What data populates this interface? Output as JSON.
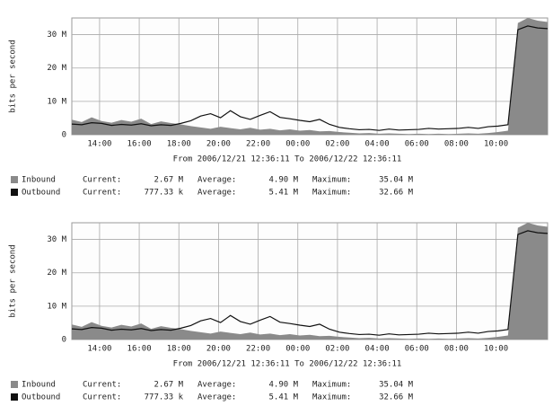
{
  "chart_data": [
    {
      "type": "area-line",
      "y_label": "bits per second",
      "subtitle": "From 2006/12/21 12:36:11 To 2006/12/22 12:36:11",
      "x": [
        12.6,
        13.1,
        13.6,
        14.1,
        14.6,
        15.1,
        15.6,
        16.1,
        16.6,
        17.1,
        17.6,
        18.1,
        18.6,
        19.1,
        19.6,
        20.1,
        20.6,
        21.1,
        21.6,
        22.1,
        22.6,
        23.1,
        23.6,
        24.1,
        24.6,
        25.1,
        25.6,
        26.1,
        26.6,
        27.1,
        27.6,
        28.1,
        28.6,
        29.1,
        29.6,
        30.1,
        30.6,
        31.1,
        31.6,
        32.1,
        32.6,
        33.1,
        33.6,
        34.1,
        34.6,
        35.1,
        35.6,
        36.1,
        36.6
      ],
      "xlim": [
        12.6,
        36.6
      ],
      "xticks": [
        {
          "value": 14,
          "label": "14:00"
        },
        {
          "value": 16,
          "label": "16:00"
        },
        {
          "value": 18,
          "label": "18:00"
        },
        {
          "value": 20,
          "label": "20:00"
        },
        {
          "value": 22,
          "label": "22:00"
        },
        {
          "value": 24,
          "label": "00:00"
        },
        {
          "value": 26,
          "label": "02:00"
        },
        {
          "value": 28,
          "label": "04:00"
        },
        {
          "value": 30,
          "label": "06:00"
        },
        {
          "value": 32,
          "label": "08:00"
        },
        {
          "value": 34,
          "label": "10:00"
        }
      ],
      "ylim": [
        0,
        35
      ],
      "yticks": [
        {
          "value": 0,
          "label": "0"
        },
        {
          "value": 10,
          "label": "10 M"
        },
        {
          "value": 20,
          "label": "20 M"
        },
        {
          "value": 30,
          "label": "30 M"
        }
      ],
      "grid": true,
      "series": [
        {
          "name": "Inbound",
          "color": "#8a8a8a",
          "style": "area",
          "values": [
            4.5,
            3.8,
            5.2,
            4.1,
            3.6,
            4.4,
            3.9,
            4.8,
            3.2,
            4.0,
            3.5,
            3.1,
            2.6,
            2.2,
            1.8,
            2.4,
            2.0,
            1.6,
            2.1,
            1.5,
            1.8,
            1.3,
            1.6,
            1.2,
            1.4,
            1.0,
            1.1,
            0.8,
            0.6,
            0.4,
            0.5,
            0.3,
            0.4,
            0.3,
            0.2,
            0.3,
            0.2,
            0.3,
            0.2,
            0.3,
            0.4,
            0.3,
            0.5,
            0.8,
            1.2,
            33.5,
            35.0,
            34.2,
            33.8
          ],
          "stats": [
            {
              "label": "Current:",
              "text": "2.67 M"
            },
            {
              "label": "Average:",
              "text": "4.90 M"
            },
            {
              "label": "Maximum:",
              "text": "35.04 M"
            }
          ]
        },
        {
          "name": "Outbound",
          "color": "#111111",
          "style": "line",
          "values": [
            3.2,
            3.0,
            3.6,
            3.4,
            2.8,
            3.1,
            2.9,
            3.3,
            2.7,
            3.0,
            2.8,
            3.4,
            4.2,
            5.6,
            6.3,
            5.1,
            7.2,
            5.4,
            4.6,
            5.8,
            6.9,
            5.2,
            4.8,
            4.3,
            3.9,
            4.6,
            3.1,
            2.2,
            1.8,
            1.5,
            1.6,
            1.3,
            1.7,
            1.4,
            1.5,
            1.6,
            1.9,
            1.7,
            1.8,
            1.9,
            2.2,
            1.9,
            2.4,
            2.6,
            3.0,
            31.5,
            32.6,
            32.0,
            31.8
          ],
          "stats": [
            {
              "label": "Current:",
              "text": "777.33 k"
            },
            {
              "label": "Average:",
              "text": "5.41 M"
            },
            {
              "label": "Maximum:",
              "text": "32.66 M"
            }
          ]
        }
      ]
    },
    {
      "type": "area-line",
      "y_label": "bits per second",
      "subtitle": "From 2006/12/21 12:36:11 To 2006/12/22 12:36:11",
      "x": [
        12.6,
        13.1,
        13.6,
        14.1,
        14.6,
        15.1,
        15.6,
        16.1,
        16.6,
        17.1,
        17.6,
        18.1,
        18.6,
        19.1,
        19.6,
        20.1,
        20.6,
        21.1,
        21.6,
        22.1,
        22.6,
        23.1,
        23.6,
        24.1,
        24.6,
        25.1,
        25.6,
        26.1,
        26.6,
        27.1,
        27.6,
        28.1,
        28.6,
        29.1,
        29.6,
        30.1,
        30.6,
        31.1,
        31.6,
        32.1,
        32.6,
        33.1,
        33.6,
        34.1,
        34.6,
        35.1,
        35.6,
        36.1,
        36.6
      ],
      "xlim": [
        12.6,
        36.6
      ],
      "xticks": [
        {
          "value": 14,
          "label": "14:00"
        },
        {
          "value": 16,
          "label": "16:00"
        },
        {
          "value": 18,
          "label": "18:00"
        },
        {
          "value": 20,
          "label": "20:00"
        },
        {
          "value": 22,
          "label": "22:00"
        },
        {
          "value": 24,
          "label": "00:00"
        },
        {
          "value": 26,
          "label": "02:00"
        },
        {
          "value": 28,
          "label": "04:00"
        },
        {
          "value": 30,
          "label": "06:00"
        },
        {
          "value": 32,
          "label": "08:00"
        },
        {
          "value": 34,
          "label": "10:00"
        }
      ],
      "ylim": [
        0,
        35
      ],
      "yticks": [
        {
          "value": 0,
          "label": "0"
        },
        {
          "value": 10,
          "label": "10 M"
        },
        {
          "value": 20,
          "label": "20 M"
        },
        {
          "value": 30,
          "label": "30 M"
        }
      ],
      "grid": true,
      "series": [
        {
          "name": "Inbound",
          "color": "#8a8a8a",
          "style": "area",
          "values": [
            4.5,
            3.8,
            5.2,
            4.1,
            3.6,
            4.4,
            3.9,
            4.8,
            3.2,
            4.0,
            3.5,
            3.1,
            2.6,
            2.2,
            1.8,
            2.4,
            2.0,
            1.6,
            2.1,
            1.5,
            1.8,
            1.3,
            1.6,
            1.2,
            1.4,
            1.0,
            1.1,
            0.8,
            0.6,
            0.4,
            0.5,
            0.3,
            0.4,
            0.3,
            0.2,
            0.3,
            0.2,
            0.3,
            0.2,
            0.3,
            0.4,
            0.3,
            0.5,
            0.8,
            1.2,
            33.5,
            35.0,
            34.2,
            33.8
          ],
          "stats": [
            {
              "label": "Current:",
              "text": "2.67 M"
            },
            {
              "label": "Average:",
              "text": "4.90 M"
            },
            {
              "label": "Maximum:",
              "text": "35.04 M"
            }
          ]
        },
        {
          "name": "Outbound",
          "color": "#111111",
          "style": "line",
          "values": [
            3.2,
            3.0,
            3.6,
            3.4,
            2.8,
            3.1,
            2.9,
            3.3,
            2.7,
            3.0,
            2.8,
            3.4,
            4.2,
            5.6,
            6.3,
            5.1,
            7.2,
            5.4,
            4.6,
            5.8,
            6.9,
            5.2,
            4.8,
            4.3,
            3.9,
            4.6,
            3.1,
            2.2,
            1.8,
            1.5,
            1.6,
            1.3,
            1.7,
            1.4,
            1.5,
            1.6,
            1.9,
            1.7,
            1.8,
            1.9,
            2.2,
            1.9,
            2.4,
            2.6,
            3.0,
            31.5,
            32.6,
            32.0,
            31.8
          ],
          "stats": [
            {
              "label": "Current:",
              "text": "777.33 k"
            },
            {
              "label": "Average:",
              "text": "5.41 M"
            },
            {
              "label": "Maximum:",
              "text": "32.66 M"
            }
          ]
        }
      ]
    }
  ]
}
